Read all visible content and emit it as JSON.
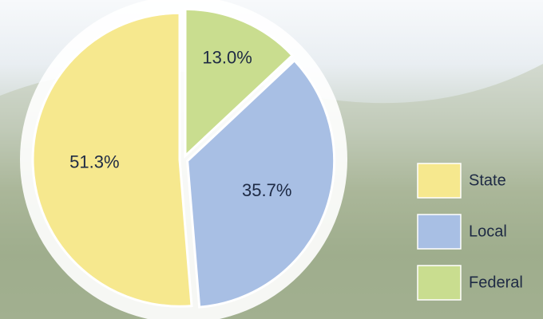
{
  "chart_data": {
    "type": "pie",
    "categories": [
      "State",
      "Local",
      "Federal"
    ],
    "values": [
      51.3,
      35.7,
      13.0
    ],
    "value_labels": [
      "51.3%",
      "35.7%",
      "13.0%"
    ],
    "colors": [
      "#f6e88e",
      "#a8bfe4",
      "#c9dd8f"
    ],
    "legend": "right"
  }
}
